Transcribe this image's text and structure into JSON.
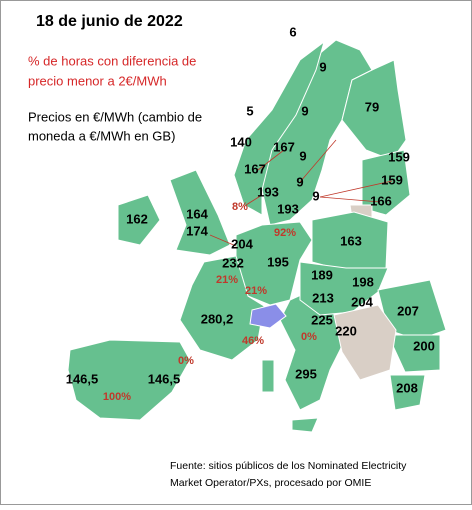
{
  "header": {
    "title": "18 de junio de 2022",
    "legend_red": [
      "% de horas con diferencia de",
      "precio menor a 2€/MWh"
    ],
    "legend_black": [
      "Precios en €/MWh (cambio de",
      "moneda a €/MWh en GB)"
    ]
  },
  "prices": [
    "6",
    "9",
    "79",
    "5",
    "9",
    "140",
    "167",
    "9",
    "159",
    "167",
    "9",
    "159",
    "193",
    "9",
    "166",
    "193",
    "162",
    "164",
    "174",
    "163",
    "204",
    "232",
    "195",
    "189",
    "198",
    "213",
    "204",
    "207",
    "280,2",
    "225",
    "220",
    "200",
    "146,5",
    "146,5",
    "295",
    "208"
  ],
  "percentages": [
    "8%",
    "92%",
    "21%",
    "21%",
    "46%",
    "0%",
    "0%",
    "100%"
  ],
  "source": [
    "Fuente: sitios públicos de los Nominated Electricity",
    "Market Operator/PXs, procesado por OMIE"
  ]
}
